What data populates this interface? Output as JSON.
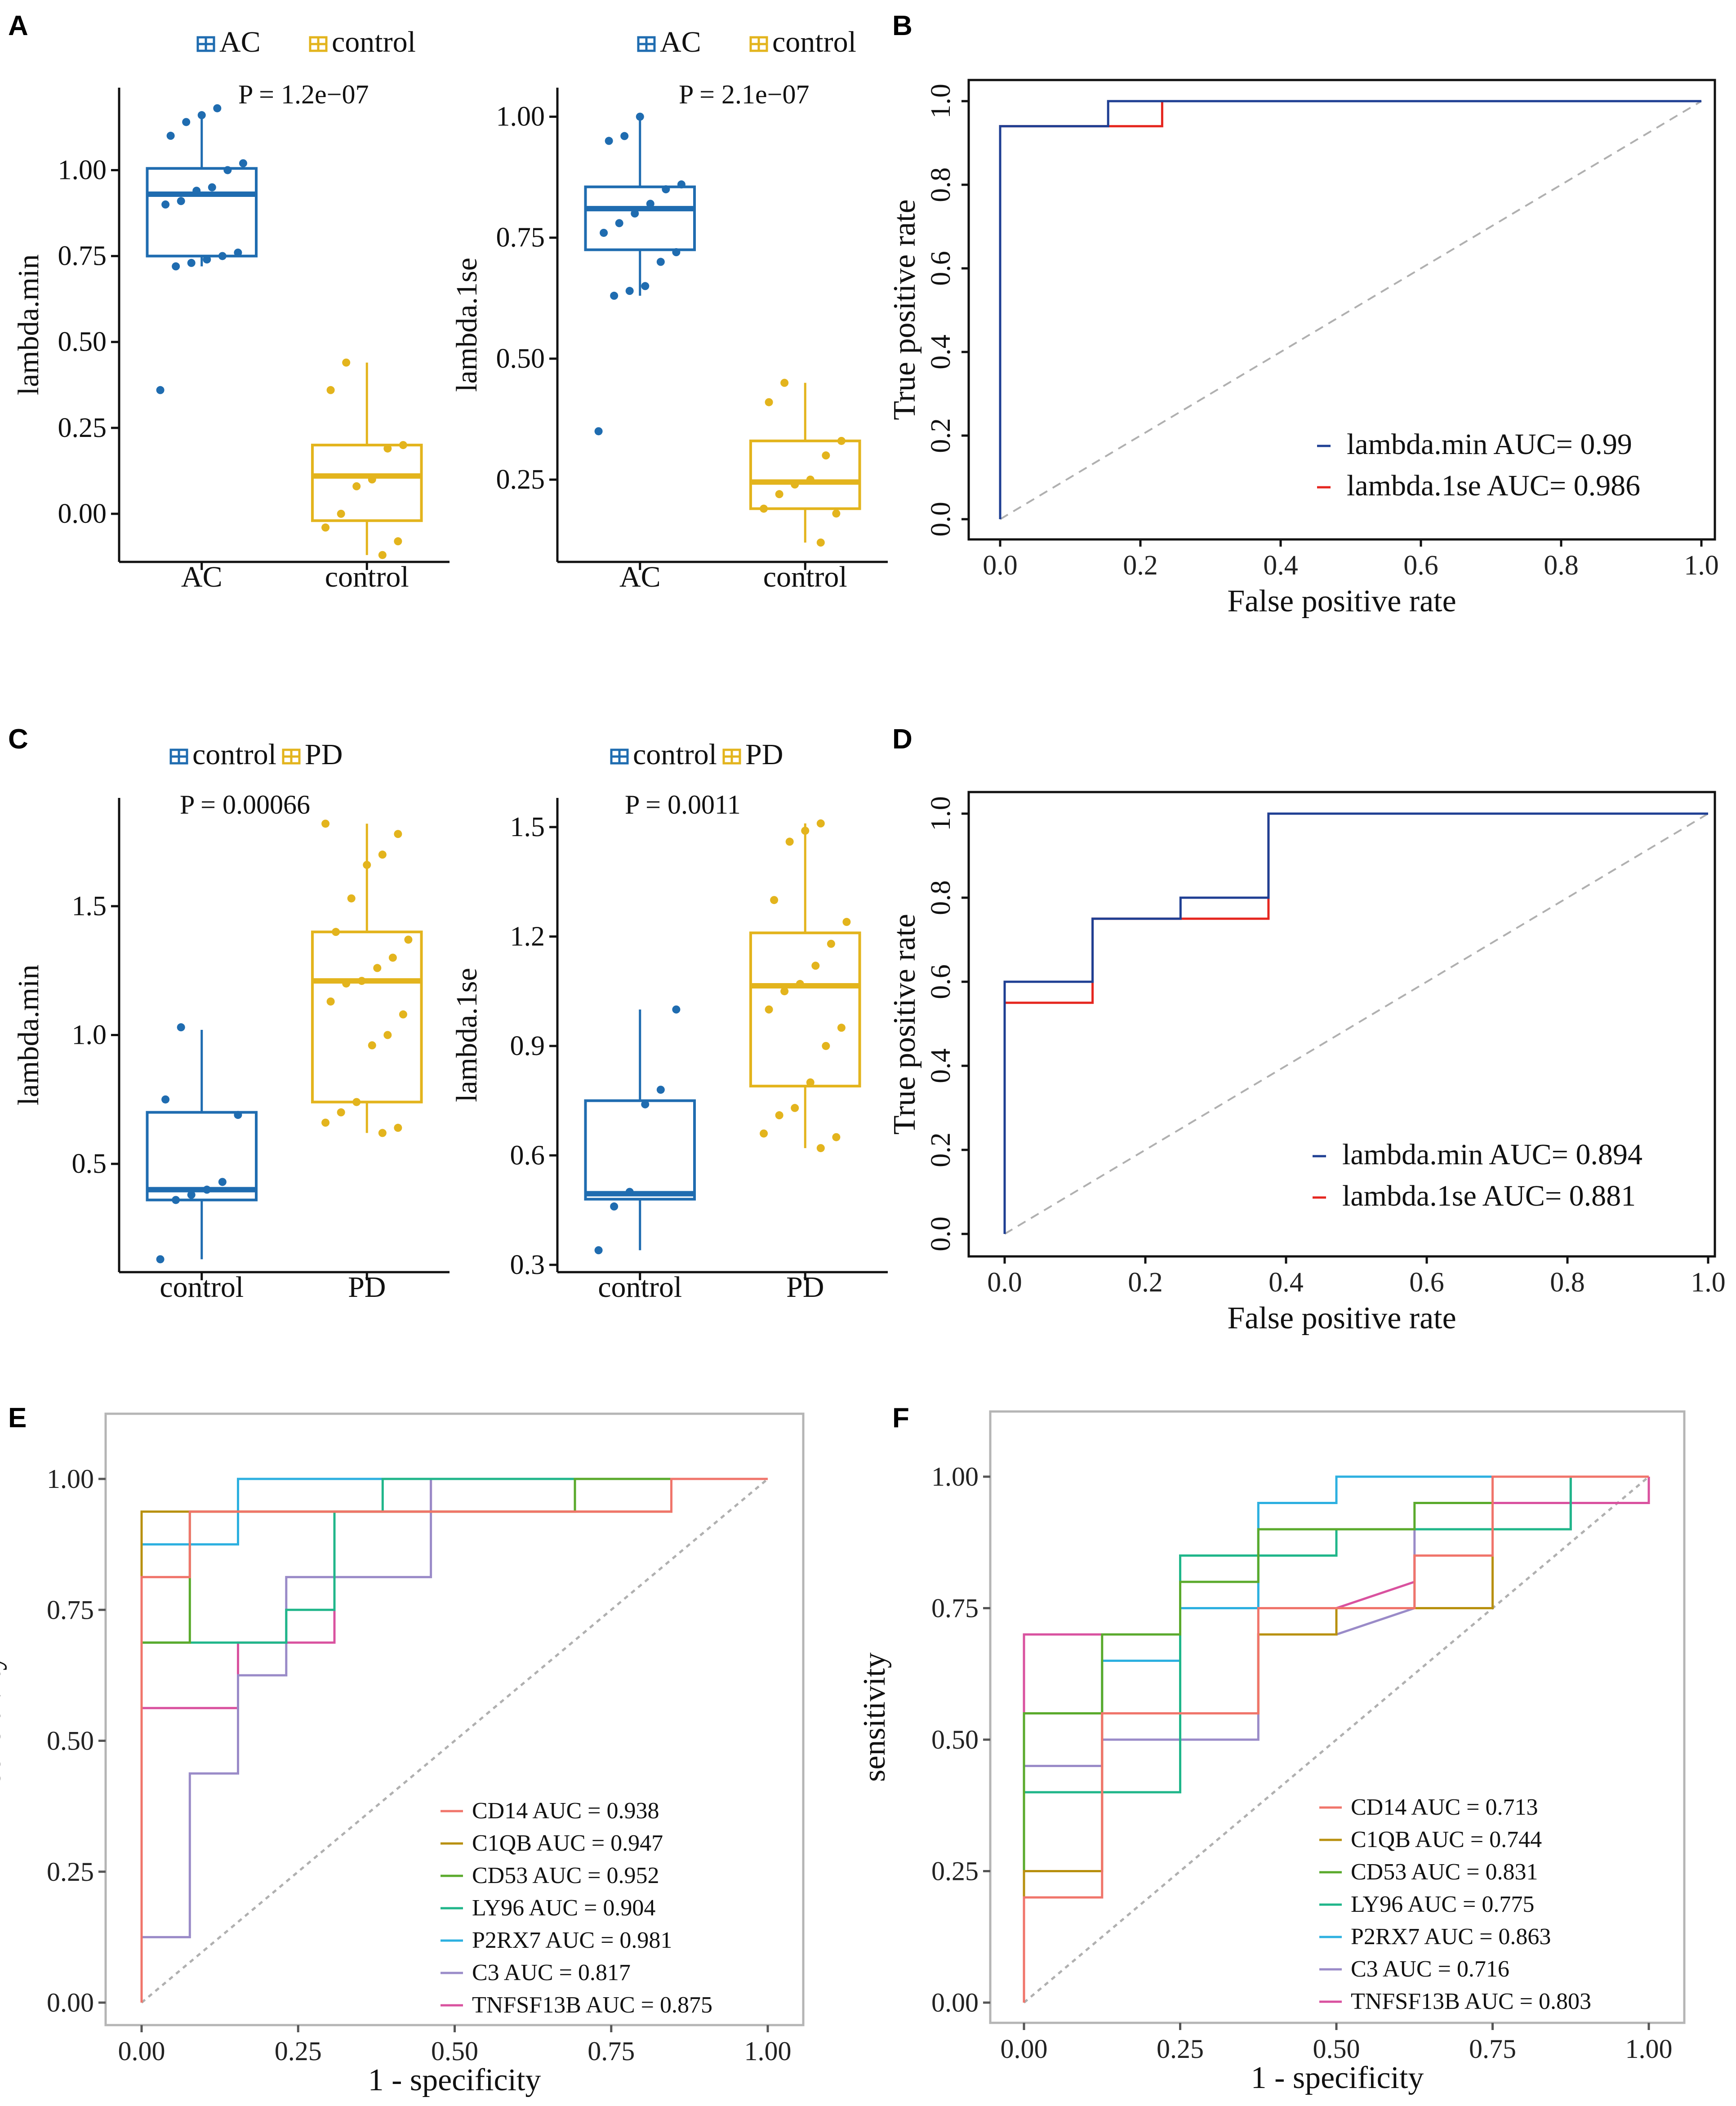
{
  "colors": {
    "blue": "#1f6cb0",
    "gold": "#e3b41d",
    "roc_blue": "#1f3f93",
    "roc_red": "#e5261f",
    "diag": "#b0b0b0",
    "cd14": "#f0756b",
    "c1qb": "#b8900f",
    "cd53": "#5aaa2c",
    "ly96": "#20b68a",
    "p2rx7": "#2db0e0",
    "c3": "#9a8bc8",
    "tnfsf13b": "#d9529f"
  },
  "chart_data": [
    {
      "panel": "A",
      "id": "A1",
      "type": "box",
      "legend": [
        "AC",
        "control"
      ],
      "categories": [
        "AC",
        "control"
      ],
      "ylabel": "lambda.min",
      "ylim": [
        -0.14,
        1.24
      ],
      "yticks": [
        "0.00",
        "0.25",
        "0.50",
        "0.75",
        "1.00"
      ],
      "yticks_values": [
        0,
        0.25,
        0.5,
        0.75,
        1.0
      ],
      "pvalue": "P = 1.2e−07",
      "boxes": [
        {
          "q1": 0.75,
          "median": 0.93,
          "q3": 1.005,
          "wlo": 0.72,
          "whi": 1.17
        },
        {
          "q1": -0.02,
          "median": 0.11,
          "q3": 0.2,
          "wlo": -0.12,
          "whi": 0.44
        }
      ],
      "points": [
        [
          0.36,
          0.72,
          0.73,
          0.74,
          0.75,
          0.76,
          0.9,
          0.91,
          0.94,
          0.95,
          1.0,
          1.02,
          1.1,
          1.14,
          1.16,
          1.18
        ],
        [
          -0.12,
          -0.08,
          -0.04,
          0.0,
          0.08,
          0.1,
          0.19,
          0.2,
          0.36,
          0.44
        ]
      ]
    },
    {
      "panel": "A",
      "id": "A2",
      "type": "box",
      "legend": [
        "AC",
        "control"
      ],
      "categories": [
        "AC",
        "control"
      ],
      "ylabel": "lambda.1se",
      "ylim": [
        0.08,
        1.06
      ],
      "yticks": [
        "0.25",
        "0.50",
        "0.75",
        "1.00"
      ],
      "yticks_values": [
        0.25,
        0.5,
        0.75,
        1.0
      ],
      "pvalue": "P = 2.1e−07",
      "boxes": [
        {
          "q1": 0.725,
          "median": 0.81,
          "q3": 0.855,
          "wlo": 0.63,
          "whi": 1.0
        },
        {
          "q1": 0.19,
          "median": 0.245,
          "q3": 0.33,
          "wlo": 0.12,
          "whi": 0.45
        }
      ],
      "points": [
        [
          0.35,
          0.63,
          0.64,
          0.65,
          0.7,
          0.72,
          0.76,
          0.78,
          0.8,
          0.82,
          0.85,
          0.86,
          0.95,
          0.96,
          1.0
        ],
        [
          0.12,
          0.18,
          0.19,
          0.22,
          0.24,
          0.25,
          0.3,
          0.33,
          0.41,
          0.45
        ]
      ]
    },
    {
      "panel": "B",
      "id": "B",
      "type": "roc",
      "xlabel": "False positive rate",
      "ylabel": "True positive rate",
      "xticks": [
        "0.0",
        "0.2",
        "0.4",
        "0.6",
        "0.8",
        "1.0"
      ],
      "yticks": [
        "0.0",
        "0.2",
        "0.4",
        "0.6",
        "0.8",
        "1.0"
      ],
      "series": [
        {
          "name": "lambda.min AUC= 0.99",
          "color": "#1f3f93",
          "points": [
            [
              0,
              0
            ],
            [
              0,
              0.94
            ],
            [
              0.154,
              0.94
            ],
            [
              0.154,
              1.0
            ],
            [
              1,
              1
            ]
          ]
        },
        {
          "name": "lambda.1se AUC= 0.986",
          "color": "#e5261f",
          "points": [
            [
              0,
              0
            ],
            [
              0,
              0.94
            ],
            [
              0.154,
              0.94
            ],
            [
              0.231,
              0.94
            ],
            [
              0.231,
              1.0
            ],
            [
              1,
              1
            ]
          ]
        }
      ]
    },
    {
      "panel": "C",
      "id": "C1",
      "type": "box",
      "legend": [
        "control",
        "PD"
      ],
      "categories": [
        "control",
        "PD"
      ],
      "ylabel": "lambda.min",
      "ylim": [
        0.08,
        1.92
      ],
      "yticks": [
        "0.5",
        "1.0",
        "1.5"
      ],
      "yticks_values": [
        0.5,
        1.0,
        1.5
      ],
      "pvalue": "P = 0.00066",
      "boxes": [
        {
          "q1": 0.36,
          "median": 0.4,
          "q3": 0.7,
          "wlo": 0.13,
          "whi": 1.02
        },
        {
          "q1": 0.74,
          "median": 1.21,
          "q3": 1.4,
          "wlo": 0.62,
          "whi": 1.82
        }
      ],
      "points": [
        [
          0.13,
          0.36,
          0.38,
          0.4,
          0.43,
          0.69,
          0.75,
          1.03
        ],
        [
          0.62,
          0.64,
          0.66,
          0.7,
          0.74,
          0.96,
          1.0,
          1.08,
          1.13,
          1.2,
          1.21,
          1.26,
          1.3,
          1.37,
          1.4,
          1.53,
          1.66,
          1.7,
          1.78,
          1.82
        ]
      ]
    },
    {
      "panel": "C",
      "id": "C2",
      "type": "box",
      "legend": [
        "control",
        "PD"
      ],
      "categories": [
        "control",
        "PD"
      ],
      "ylabel": "lambda.1se",
      "ylim": [
        0.28,
        1.58
      ],
      "yticks": [
        "0.3",
        "0.6",
        "0.9",
        "1.2",
        "1.5"
      ],
      "yticks_values": [
        0.3,
        0.6,
        0.9,
        1.2,
        1.5
      ],
      "pvalue": "P = 0.0011",
      "boxes": [
        {
          "q1": 0.48,
          "median": 0.495,
          "q3": 0.75,
          "wlo": 0.34,
          "whi": 1.0
        },
        {
          "q1": 0.79,
          "median": 1.065,
          "q3": 1.21,
          "wlo": 0.62,
          "whi": 1.51
        }
      ],
      "points": [
        [
          0.34,
          0.46,
          0.5,
          0.74,
          0.78,
          1.0
        ],
        [
          0.62,
          0.65,
          0.66,
          0.71,
          0.73,
          0.8,
          0.9,
          0.95,
          1.0,
          1.05,
          1.07,
          1.12,
          1.18,
          1.24,
          1.3,
          1.46,
          1.49,
          1.51
        ]
      ]
    },
    {
      "panel": "D",
      "id": "D",
      "type": "roc",
      "xlabel": "False positive rate",
      "ylabel": "True positive rate",
      "xticks": [
        "0.0",
        "0.2",
        "0.4",
        "0.6",
        "0.8",
        "1.0"
      ],
      "yticks": [
        "0.0",
        "0.2",
        "0.4",
        "0.6",
        "0.8",
        "1.0"
      ],
      "series": [
        {
          "name": "lambda.min AUC= 0.894",
          "color": "#1f3f93",
          "points": [
            [
              0,
              0
            ],
            [
              0,
              0.6
            ],
            [
              0.125,
              0.6
            ],
            [
              0.125,
              0.75
            ],
            [
              0.25,
              0.75
            ],
            [
              0.25,
              0.8
            ],
            [
              0.375,
              0.8
            ],
            [
              0.375,
              1.0
            ],
            [
              1,
              1
            ]
          ]
        },
        {
          "name": "lambda.1se AUC= 0.881",
          "color": "#e5261f",
          "points": [
            [
              0,
              0
            ],
            [
              0,
              0.55
            ],
            [
              0.125,
              0.55
            ],
            [
              0.125,
              0.75
            ],
            [
              0.375,
              0.75
            ],
            [
              0.375,
              1.0
            ],
            [
              1,
              1
            ]
          ]
        }
      ]
    },
    {
      "panel": "E",
      "id": "E",
      "type": "roc",
      "xlabel": "1 - specificity",
      "ylabel": "sensitivity",
      "xticks": [
        "0.00",
        "0.25",
        "0.50",
        "0.75",
        "1.00"
      ],
      "yticks": [
        "0.00",
        "0.25",
        "0.50",
        "0.75",
        "1.00"
      ],
      "series": [
        {
          "name": "CD14 AUC = 0.938",
          "color": "#f0756b",
          "points": [
            [
              0,
              0
            ],
            [
              0,
              0.8125
            ],
            [
              0.077,
              0.8125
            ],
            [
              0.077,
              0.9375
            ],
            [
              0.846,
              0.9375
            ],
            [
              0.846,
              1.0
            ],
            [
              1,
              1
            ]
          ]
        },
        {
          "name": "C1QB AUC = 0.947",
          "color": "#b8900f",
          "points": [
            [
              0,
              0
            ],
            [
              0,
              0.9375
            ],
            [
              0.846,
              0.9375
            ],
            [
              0.846,
              1.0
            ],
            [
              1,
              1
            ]
          ]
        },
        {
          "name": "CD53 AUC = 0.952",
          "color": "#5aaa2c",
          "points": [
            [
              0,
              0
            ],
            [
              0,
              0.6875
            ],
            [
              0.077,
              0.6875
            ],
            [
              0.077,
              0.9375
            ],
            [
              0.692,
              0.9375
            ],
            [
              0.692,
              1.0
            ],
            [
              1,
              1
            ]
          ]
        },
        {
          "name": "LY96 AUC = 0.904",
          "color": "#20b68a",
          "points": [
            [
              0,
              0
            ],
            [
              0,
              0.6875
            ],
            [
              0.154,
              0.6875
            ],
            [
              0.231,
              0.6875
            ],
            [
              0.231,
              0.75
            ],
            [
              0.308,
              0.75
            ],
            [
              0.308,
              0.9375
            ],
            [
              0.385,
              0.9375
            ],
            [
              0.385,
              1.0
            ],
            [
              1,
              1
            ]
          ]
        },
        {
          "name": "P2RX7 AUC = 0.981",
          "color": "#2db0e0",
          "points": [
            [
              0,
              0
            ],
            [
              0,
              0.875
            ],
            [
              0.154,
              0.875
            ],
            [
              0.154,
              1.0
            ],
            [
              1,
              1
            ]
          ]
        },
        {
          "name": "C3 AUC = 0.817",
          "color": "#9a8bc8",
          "points": [
            [
              0,
              0
            ],
            [
              0,
              0.125
            ],
            [
              0.077,
              0.125
            ],
            [
              0.077,
              0.4375
            ],
            [
              0.154,
              0.4375
            ],
            [
              0.154,
              0.625
            ],
            [
              0.231,
              0.625
            ],
            [
              0.231,
              0.8125
            ],
            [
              0.462,
              0.8125
            ],
            [
              0.462,
              1.0
            ],
            [
              1,
              1
            ]
          ]
        },
        {
          "name": "TNFSF13B AUC = 0.875",
          "color": "#d9529f",
          "points": [
            [
              0,
              0
            ],
            [
              0,
              0.5625
            ],
            [
              0.154,
              0.5625
            ],
            [
              0.154,
              0.6875
            ],
            [
              0.308,
              0.6875
            ],
            [
              0.308,
              0.9375
            ],
            [
              0.462,
              0.9375
            ],
            [
              0.462,
              1.0
            ],
            [
              1,
              1
            ]
          ]
        }
      ]
    },
    {
      "panel": "F",
      "id": "F",
      "type": "roc",
      "xlabel": "1 - specificity",
      "ylabel": "sensitivity",
      "xticks": [
        "0.00",
        "0.25",
        "0.50",
        "0.75",
        "1.00"
      ],
      "yticks": [
        "0.00",
        "0.25",
        "0.50",
        "0.75",
        "1.00"
      ],
      "series": [
        {
          "name": "CD14 AUC = 0.713",
          "color": "#f0756b",
          "points": [
            [
              0,
              0
            ],
            [
              0,
              0.2
            ],
            [
              0.125,
              0.2
            ],
            [
              0.125,
              0.55
            ],
            [
              0.375,
              0.55
            ],
            [
              0.375,
              0.75
            ],
            [
              0.625,
              0.75
            ],
            [
              0.625,
              0.85
            ],
            [
              0.75,
              0.85
            ],
            [
              0.75,
              1.0
            ],
            [
              1,
              1
            ]
          ]
        },
        {
          "name": "C1QB AUC = 0.744",
          "color": "#b8900f",
          "points": [
            [
              0,
              0
            ],
            [
              0,
              0.25
            ],
            [
              0.125,
              0.25
            ],
            [
              0.125,
              0.55
            ],
            [
              0.375,
              0.55
            ],
            [
              0.375,
              0.7
            ],
            [
              0.5,
              0.7
            ],
            [
              0.5,
              0.75
            ],
            [
              0.75,
              0.75
            ],
            [
              0.75,
              1.0
            ],
            [
              1,
              1
            ]
          ]
        },
        {
          "name": "CD53 AUC = 0.831",
          "color": "#5aaa2c",
          "points": [
            [
              0,
              0
            ],
            [
              0,
              0.55
            ],
            [
              0.125,
              0.55
            ],
            [
              0.125,
              0.7
            ],
            [
              0.25,
              0.7
            ],
            [
              0.25,
              0.8
            ],
            [
              0.375,
              0.8
            ],
            [
              0.375,
              0.9
            ],
            [
              0.625,
              0.9
            ],
            [
              0.625,
              0.95
            ],
            [
              0.75,
              0.95
            ],
            [
              0.75,
              1.0
            ],
            [
              1,
              1
            ]
          ]
        },
        {
          "name": "LY96 AUC = 0.775",
          "color": "#20b68a",
          "points": [
            [
              0,
              0
            ],
            [
              0,
              0.4
            ],
            [
              0.25,
              0.4
            ],
            [
              0.25,
              0.85
            ],
            [
              0.5,
              0.85
            ],
            [
              0.5,
              0.9
            ],
            [
              0.625,
              0.9
            ],
            [
              0.875,
              0.9
            ],
            [
              0.875,
              1.0
            ],
            [
              1,
              1
            ]
          ]
        },
        {
          "name": "P2RX7 AUC = 0.863",
          "color": "#2db0e0",
          "points": [
            [
              0,
              0
            ],
            [
              0,
              0.55
            ],
            [
              0.125,
              0.55
            ],
            [
              0.125,
              0.65
            ],
            [
              0.25,
              0.65
            ],
            [
              0.25,
              0.75
            ],
            [
              0.375,
              0.75
            ],
            [
              0.375,
              0.95
            ],
            [
              0.5,
              0.95
            ],
            [
              0.5,
              1.0
            ],
            [
              1,
              1
            ]
          ]
        },
        {
          "name": "C3 AUC = 0.716",
          "color": "#9a8bc8",
          "points": [
            [
              0,
              0
            ],
            [
              0,
              0.45
            ],
            [
              0.125,
              0.45
            ],
            [
              0.125,
              0.5
            ],
            [
              0.375,
              0.5
            ],
            [
              0.375,
              0.7
            ],
            [
              0.5,
              0.7
            ],
            [
              0.625,
              0.75
            ],
            [
              0.625,
              0.9
            ],
            [
              0.875,
              0.9
            ],
            [
              0.875,
              1.0
            ],
            [
              1,
              1
            ]
          ]
        },
        {
          "name": "TNFSF13B AUC = 0.803",
          "color": "#d9529f",
          "points": [
            [
              0,
              0
            ],
            [
              0,
              0.7
            ],
            [
              0.25,
              0.7
            ],
            [
              0.25,
              0.75
            ],
            [
              0.5,
              0.75
            ],
            [
              0.625,
              0.8
            ],
            [
              0.625,
              0.85
            ],
            [
              0.75,
              0.85
            ],
            [
              0.75,
              0.95
            ],
            [
              1,
              0.95
            ],
            [
              1,
              1
            ]
          ]
        }
      ]
    }
  ]
}
